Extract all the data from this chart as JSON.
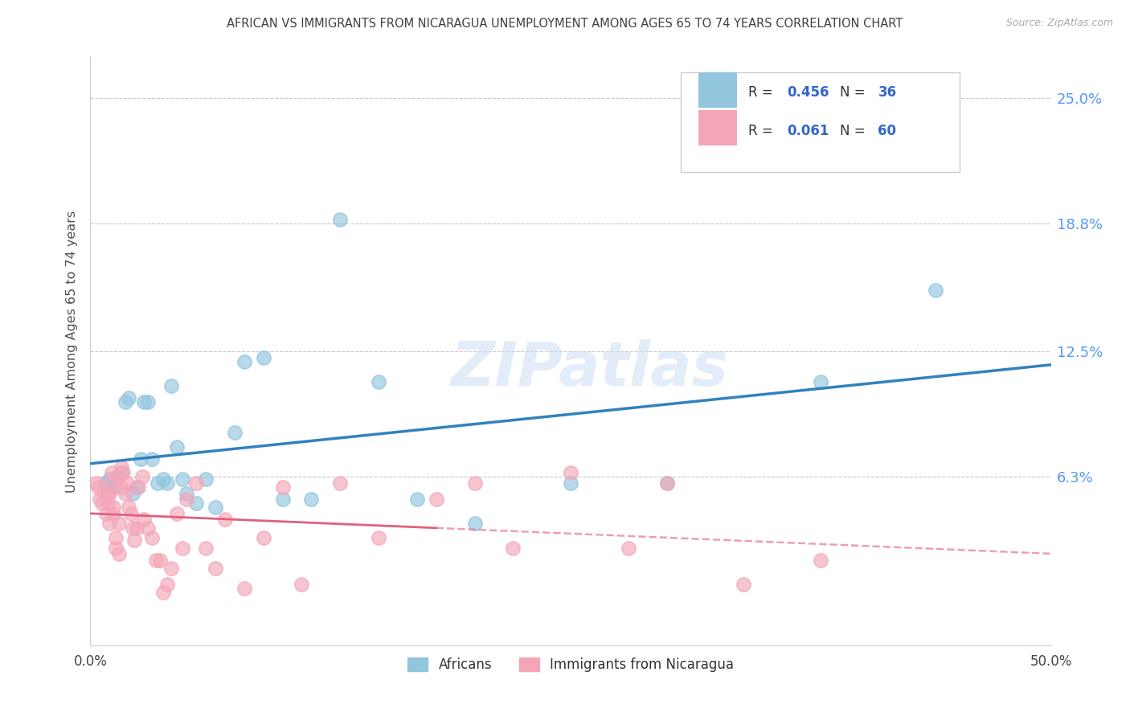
{
  "title": "AFRICAN VS IMMIGRANTS FROM NICARAGUA UNEMPLOYMENT AMONG AGES 65 TO 74 YEARS CORRELATION CHART",
  "source": "Source: ZipAtlas.com",
  "ylabel": "Unemployment Among Ages 65 to 74 years",
  "xlim": [
    0.0,
    0.5
  ],
  "ylim": [
    -0.02,
    0.27
  ],
  "ytick_labels": [
    "6.3%",
    "12.5%",
    "18.8%",
    "25.0%"
  ],
  "ytick_positions": [
    0.063,
    0.125,
    0.188,
    0.25
  ],
  "watermark": "ZIPatlas",
  "legend_label1": "Africans",
  "legend_label2": "Immigrants from Nicaragua",
  "R1": "0.456",
  "N1": "36",
  "R2": "0.061",
  "N2": "60",
  "blue_scatter_color": "#92c5de",
  "pink_scatter_color": "#f4a6b8",
  "blue_line_color": "#3182bd",
  "pink_line_color": "#e06080",
  "grid_color": "#c8c8c8",
  "title_color": "#404040",
  "axis_label_color": "#505050",
  "right_tick_color": "#5599ee",
  "legend_text_color": "#3366cc",
  "africans_x": [
    0.008,
    0.01,
    0.012,
    0.014,
    0.016,
    0.018,
    0.02,
    0.022,
    0.024,
    0.026,
    0.028,
    0.03,
    0.032,
    0.035,
    0.038,
    0.04,
    0.042,
    0.045,
    0.048,
    0.05,
    0.055,
    0.06,
    0.065,
    0.075,
    0.08,
    0.09,
    0.1,
    0.115,
    0.13,
    0.15,
    0.17,
    0.2,
    0.25,
    0.3,
    0.38,
    0.44
  ],
  "africans_y": [
    0.06,
    0.062,
    0.058,
    0.063,
    0.065,
    0.1,
    0.102,
    0.055,
    0.058,
    0.072,
    0.1,
    0.1,
    0.072,
    0.06,
    0.062,
    0.06,
    0.108,
    0.078,
    0.062,
    0.055,
    0.05,
    0.062,
    0.048,
    0.085,
    0.12,
    0.122,
    0.052,
    0.052,
    0.19,
    0.11,
    0.052,
    0.04,
    0.06,
    0.06,
    0.11,
    0.155
  ],
  "nicaragua_x": [
    0.003,
    0.004,
    0.005,
    0.006,
    0.007,
    0.008,
    0.009,
    0.009,
    0.01,
    0.01,
    0.011,
    0.011,
    0.012,
    0.012,
    0.013,
    0.013,
    0.014,
    0.015,
    0.015,
    0.016,
    0.016,
    0.017,
    0.018,
    0.019,
    0.02,
    0.021,
    0.022,
    0.023,
    0.024,
    0.025,
    0.027,
    0.028,
    0.03,
    0.032,
    0.034,
    0.036,
    0.038,
    0.04,
    0.042,
    0.045,
    0.048,
    0.05,
    0.055,
    0.06,
    0.065,
    0.07,
    0.08,
    0.09,
    0.1,
    0.11,
    0.13,
    0.15,
    0.18,
    0.2,
    0.22,
    0.25,
    0.28,
    0.3,
    0.34,
    0.38
  ],
  "nicaragua_y": [
    0.06,
    0.058,
    0.052,
    0.05,
    0.055,
    0.045,
    0.05,
    0.055,
    0.04,
    0.055,
    0.06,
    0.065,
    0.045,
    0.048,
    0.033,
    0.028,
    0.063,
    0.025,
    0.04,
    0.058,
    0.068,
    0.065,
    0.055,
    0.06,
    0.048,
    0.045,
    0.038,
    0.032,
    0.038,
    0.058,
    0.063,
    0.042,
    0.038,
    0.033,
    0.022,
    0.022,
    0.006,
    0.01,
    0.018,
    0.045,
    0.028,
    0.052,
    0.06,
    0.028,
    0.018,
    0.042,
    0.008,
    0.033,
    0.058,
    0.01,
    0.06,
    0.033,
    0.052,
    0.06,
    0.028,
    0.065,
    0.028,
    0.06,
    0.01,
    0.022
  ]
}
